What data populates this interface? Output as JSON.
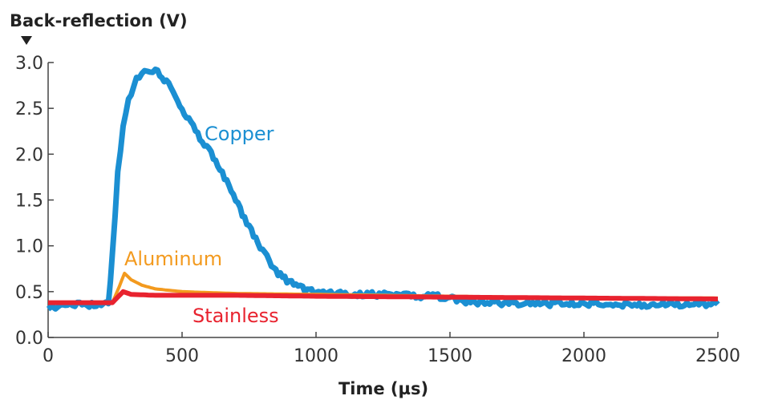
{
  "chart_data": {
    "type": "line",
    "title": "",
    "ylabel": "Back-reflection (V)",
    "xlabel": "Time (µs)",
    "xlim": [
      0,
      2500
    ],
    "ylim": [
      0,
      3.0
    ],
    "xticks": [
      "0",
      "500",
      "1000",
      "1500",
      "2000",
      "2500"
    ],
    "yticks": [
      "0.0",
      "0.5",
      "1.0",
      "1.5",
      "2.0",
      "2.5",
      "3.0"
    ],
    "grid": false,
    "series": [
      {
        "name": "Copper",
        "color": "#1b8fd2",
        "x": [
          0,
          100,
          225,
          240,
          260,
          280,
          300,
          330,
          360,
          400,
          450,
          500,
          550,
          600,
          650,
          700,
          750,
          800,
          850,
          900,
          950,
          1000,
          1100,
          1300,
          1500,
          1550,
          1800,
          2100,
          2500
        ],
        "y": [
          0.33,
          0.36,
          0.36,
          0.9,
          1.8,
          2.3,
          2.6,
          2.82,
          2.92,
          2.92,
          2.75,
          2.5,
          2.25,
          2.05,
          1.8,
          1.5,
          1.2,
          0.95,
          0.72,
          0.6,
          0.53,
          0.5,
          0.48,
          0.46,
          0.44,
          0.38,
          0.37,
          0.36,
          0.36
        ]
      },
      {
        "name": "Aluminum",
        "color": "#f39a1e",
        "x": [
          0,
          240,
          265,
          285,
          310,
          350,
          400,
          500,
          700,
          1000,
          1500,
          2000,
          2500
        ],
        "y": [
          0.38,
          0.38,
          0.55,
          0.7,
          0.63,
          0.57,
          0.53,
          0.5,
          0.48,
          0.47,
          0.45,
          0.43,
          0.43
        ]
      },
      {
        "name": "Stainless",
        "color": "#e8232f",
        "x": [
          0,
          240,
          260,
          280,
          310,
          400,
          700,
          1000,
          1500,
          2000,
          2500
        ],
        "y": [
          0.38,
          0.38,
          0.44,
          0.5,
          0.47,
          0.46,
          0.46,
          0.45,
          0.44,
          0.43,
          0.42
        ]
      }
    ]
  }
}
